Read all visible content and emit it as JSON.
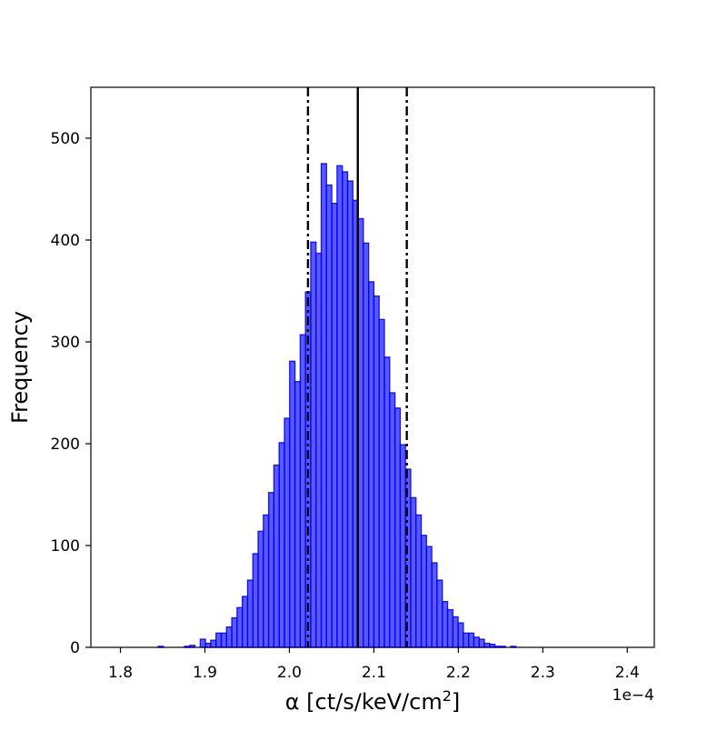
{
  "chart_data": {
    "type": "bar",
    "xlabel": "α [ct/s/keV/cm",
    "xlabel_sup": "2",
    "xlabel_end": "]",
    "ylabel": "Frequency",
    "offset_text": "1e−4",
    "xlim": [
      1.765,
      2.432
    ],
    "ylim": [
      0,
      550
    ],
    "xticks": [
      1.8,
      1.9,
      2.0,
      2.1,
      2.2,
      2.3,
      2.4
    ],
    "xtick_labels": [
      "1.8",
      "1.9",
      "2.0",
      "2.1",
      "2.2",
      "2.3",
      "2.4"
    ],
    "yticks": [
      0,
      100,
      200,
      300,
      400,
      500
    ],
    "ytick_labels": [
      "0",
      "100",
      "200",
      "300",
      "400",
      "500"
    ],
    "bin_start": 1.801,
    "bin_width": 0.00623,
    "counts": [
      0,
      0,
      0,
      0,
      0,
      0,
      0,
      1,
      0,
      0,
      0,
      0,
      1,
      2,
      0,
      8,
      4,
      7,
      14,
      14,
      20,
      29,
      39,
      50,
      66,
      92,
      114,
      130,
      152,
      179,
      201,
      225,
      281,
      261,
      307,
      349,
      398,
      387,
      475,
      454,
      436,
      473,
      467,
      458,
      439,
      421,
      397,
      359,
      345,
      322,
      285,
      250,
      235,
      199,
      175,
      147,
      130,
      110,
      99,
      83,
      66,
      45,
      37,
      30,
      24,
      14,
      14,
      10,
      8,
      4,
      3,
      1,
      1,
      0,
      1,
      0,
      0,
      0,
      0,
      0,
      0,
      0,
      0,
      0,
      0,
      0,
      0,
      0,
      0,
      0,
      0,
      0,
      0,
      0,
      0,
      0,
      0,
      0,
      0,
      0
    ],
    "bar_color": "#0000ff",
    "bar_opacity": 0.65,
    "median": 2.081,
    "lower_bound": 2.022,
    "upper_bound": 2.139,
    "median_style": "solid",
    "bound_style": "dash-dot",
    "line_color": "#000000"
  }
}
